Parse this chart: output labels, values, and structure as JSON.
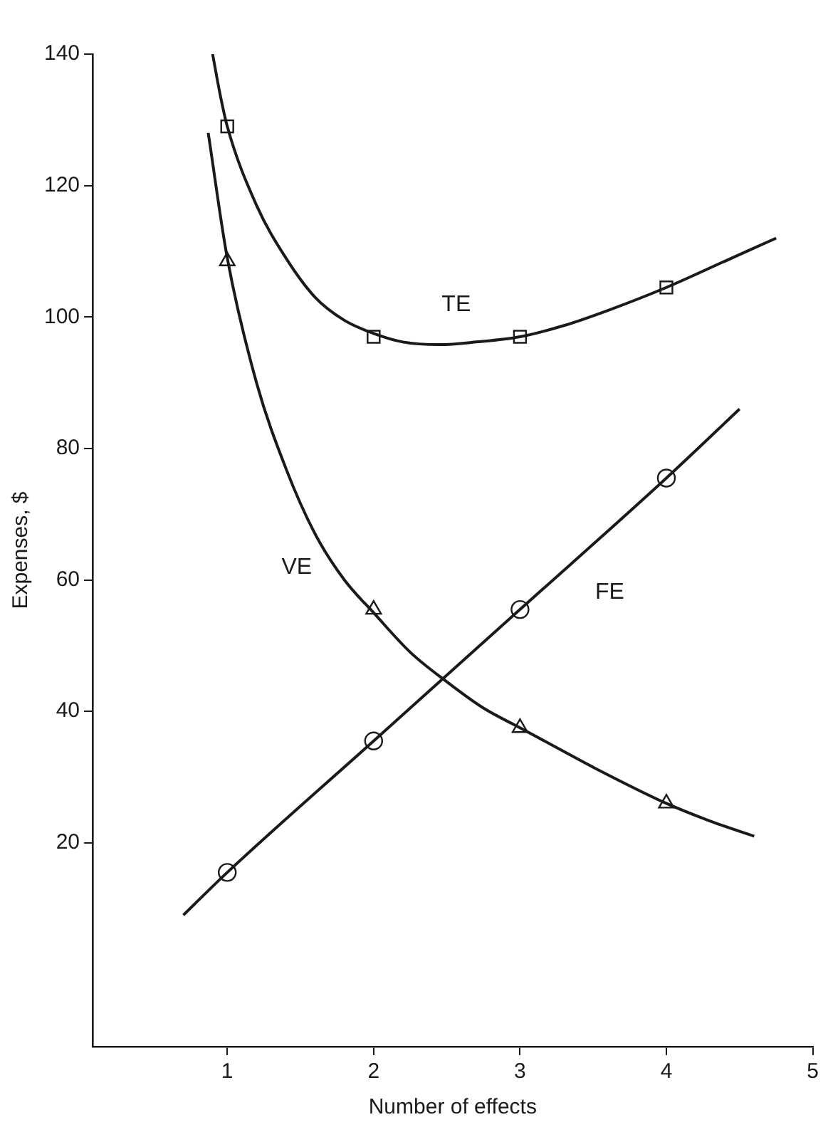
{
  "chart_data": {
    "type": "line",
    "xlabel": "Number of effects",
    "ylabel": "Expenses, $",
    "xlim": [
      0.08,
      5
    ],
    "xticks": [
      1,
      2,
      3,
      4,
      5
    ],
    "ylim": [
      -11,
      140
    ],
    "yticks": [
      20,
      40,
      60,
      80,
      100,
      120,
      140
    ],
    "grid": false,
    "legend": false,
    "series": [
      {
        "type": "line",
        "name": "TE",
        "marker": "none",
        "color": "#1a1a1a",
        "x": [
          0.9,
          0.95,
          1,
          1.2,
          1.4,
          1.6,
          1.8,
          2,
          2.2,
          2.45,
          2.7,
          3,
          3.3,
          3.6,
          4,
          4.4,
          4.75
        ],
        "values": [
          140,
          134,
          129,
          117,
          109,
          103,
          99.5,
          97.5,
          96.2,
          95.8,
          96.2,
          97,
          98.7,
          101,
          104.5,
          108.5,
          112
        ]
      },
      {
        "type": "line",
        "name": "VE",
        "marker": "none",
        "color": "#1a1a1a",
        "x": [
          0.87,
          1,
          1.2,
          1.4,
          1.6,
          1.8,
          2,
          2.25,
          2.5,
          2.75,
          3,
          3.25,
          3.5,
          4,
          4.3,
          4.6
        ],
        "values": [
          128,
          109,
          90,
          77,
          67,
          60,
          55,
          49,
          44.5,
          40.5,
          37.5,
          34.5,
          31.5,
          26,
          23.3,
          21
        ]
      },
      {
        "type": "line",
        "name": "FE",
        "marker": "none",
        "color": "#1a1a1a",
        "x": [
          0.7,
          1,
          2,
          3,
          4,
          4.5
        ],
        "values": [
          9,
          15.5,
          35.5,
          55.5,
          75.5,
          86
        ]
      },
      {
        "type": "scatter",
        "marker": "square",
        "color": "#1a1a1a",
        "x": [
          1,
          2,
          3,
          4
        ],
        "values": [
          129,
          97,
          97,
          104.5
        ]
      },
      {
        "type": "scatter",
        "marker": "triangle",
        "color": "#1a1a1a",
        "x": [
          1,
          2,
          3,
          4
        ],
        "values": [
          108.5,
          55.5,
          37.5,
          26
        ]
      },
      {
        "type": "scatter",
        "marker": "circle",
        "color": "#1a1a1a",
        "x": [
          1,
          2,
          3,
          4
        ],
        "values": [
          15.5,
          35.5,
          55.5,
          75.5
        ]
      }
    ]
  }
}
